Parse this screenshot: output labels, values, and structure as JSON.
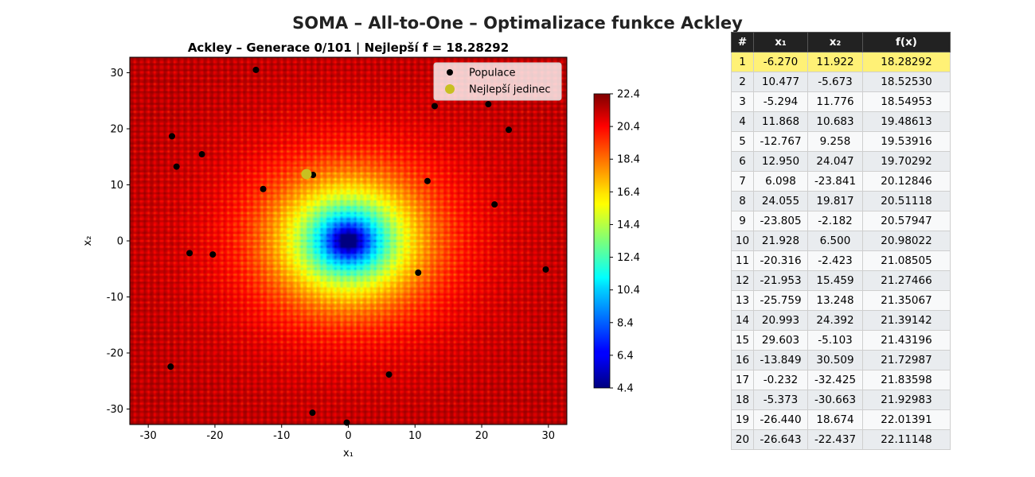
{
  "suptitle": "SOMA – All-to-One – Optimalizace funkce Ackley",
  "chart_data": {
    "type": "scatter",
    "title": "Ackley – Generace 0/101 | Nejlepší f = 18.28292",
    "xlabel": "x₁",
    "ylabel": "x₂",
    "xlim": [
      -32.768,
      32.768
    ],
    "ylim": [
      -32.768,
      32.768
    ],
    "xticks": [
      -30,
      -20,
      -10,
      0,
      10,
      20,
      30
    ],
    "yticks": [
      -30,
      -20,
      -10,
      0,
      10,
      20,
      30
    ],
    "background": "contourf of Ackley function, jet colormap",
    "colorbar": {
      "min": 4.4,
      "max": 22.4,
      "ticks": [
        "22.4",
        "20.4",
        "18.4",
        "16.4",
        "14.4",
        "12.4",
        "10.4",
        "8.4",
        "6.4",
        "4.4"
      ]
    },
    "legend": {
      "placement": "top-right",
      "entries": [
        "Populace",
        "Nejlepší jedinec"
      ]
    },
    "series": [
      {
        "name": "Populace",
        "color": "#000000",
        "points": [
          [
            -6.27,
            11.922
          ],
          [
            10.477,
            -5.673
          ],
          [
            -5.294,
            11.776
          ],
          [
            11.868,
            10.683
          ],
          [
            -12.767,
            9.258
          ],
          [
            12.95,
            24.047
          ],
          [
            6.098,
            -23.841
          ],
          [
            24.055,
            19.817
          ],
          [
            -23.805,
            -2.182
          ],
          [
            21.928,
            6.5
          ],
          [
            -20.316,
            -2.423
          ],
          [
            -21.953,
            15.459
          ],
          [
            -25.759,
            13.248
          ],
          [
            20.993,
            24.392
          ],
          [
            29.603,
            -5.103
          ],
          [
            -13.849,
            30.509
          ],
          [
            -0.232,
            -32.425
          ],
          [
            -5.373,
            -30.663
          ],
          [
            -26.44,
            18.674
          ],
          [
            -26.643,
            -22.437
          ]
        ]
      },
      {
        "name": "Nejlepší jedinec",
        "color": "#c8c021",
        "points": [
          [
            -6.27,
            11.922
          ]
        ]
      }
    ]
  },
  "table": {
    "headers": [
      "#",
      "x₁",
      "x₂",
      "f(x)"
    ],
    "rows": [
      [
        "1",
        "-6.270",
        "11.922",
        "18.28292"
      ],
      [
        "2",
        "10.477",
        "-5.673",
        "18.52530"
      ],
      [
        "3",
        "-5.294",
        "11.776",
        "18.54953"
      ],
      [
        "4",
        "11.868",
        "10.683",
        "19.48613"
      ],
      [
        "5",
        "-12.767",
        "9.258",
        "19.53916"
      ],
      [
        "6",
        "12.950",
        "24.047",
        "19.70292"
      ],
      [
        "7",
        "6.098",
        "-23.841",
        "20.12846"
      ],
      [
        "8",
        "24.055",
        "19.817",
        "20.51118"
      ],
      [
        "9",
        "-23.805",
        "-2.182",
        "20.57947"
      ],
      [
        "10",
        "21.928",
        "6.500",
        "20.98022"
      ],
      [
        "11",
        "-20.316",
        "-2.423",
        "21.08505"
      ],
      [
        "12",
        "-21.953",
        "15.459",
        "21.27466"
      ],
      [
        "13",
        "-25.759",
        "13.248",
        "21.35067"
      ],
      [
        "14",
        "20.993",
        "24.392",
        "21.39142"
      ],
      [
        "15",
        "29.603",
        "-5.103",
        "21.43196"
      ],
      [
        "16",
        "-13.849",
        "30.509",
        "21.72987"
      ],
      [
        "17",
        "-0.232",
        "-32.425",
        "21.83598"
      ],
      [
        "18",
        "-5.373",
        "-30.663",
        "21.92983"
      ],
      [
        "19",
        "-26.440",
        "18.674",
        "22.01391"
      ],
      [
        "20",
        "-26.643",
        "-22.437",
        "22.11148"
      ]
    ],
    "highlight_color": "#fff176"
  }
}
